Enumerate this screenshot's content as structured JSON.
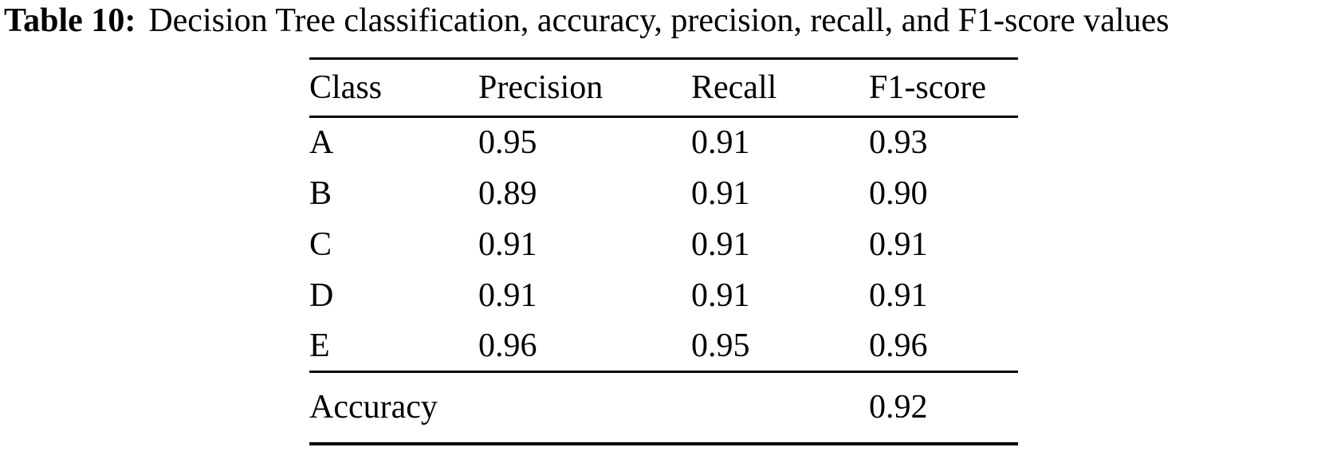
{
  "caption": {
    "label": "Table 10:",
    "text": "Decision Tree classification, accuracy, precision, recall, and F1-score values"
  },
  "table": {
    "columns": [
      "Class",
      "Precision",
      "Recall",
      "F1-score"
    ],
    "rows": [
      [
        "A",
        "0.95",
        "0.91",
        "0.93"
      ],
      [
        "B",
        "0.89",
        "0.91",
        "0.90"
      ],
      [
        "C",
        "0.91",
        "0.91",
        "0.91"
      ],
      [
        "D",
        "0.91",
        "0.91",
        "0.91"
      ],
      [
        "E",
        "0.96",
        "0.95",
        "0.96"
      ]
    ],
    "footer": {
      "label": "Accuracy",
      "value": "0.92"
    }
  },
  "colors": {
    "background": "#ffffff",
    "text": "#000000",
    "rule": "#000000"
  }
}
